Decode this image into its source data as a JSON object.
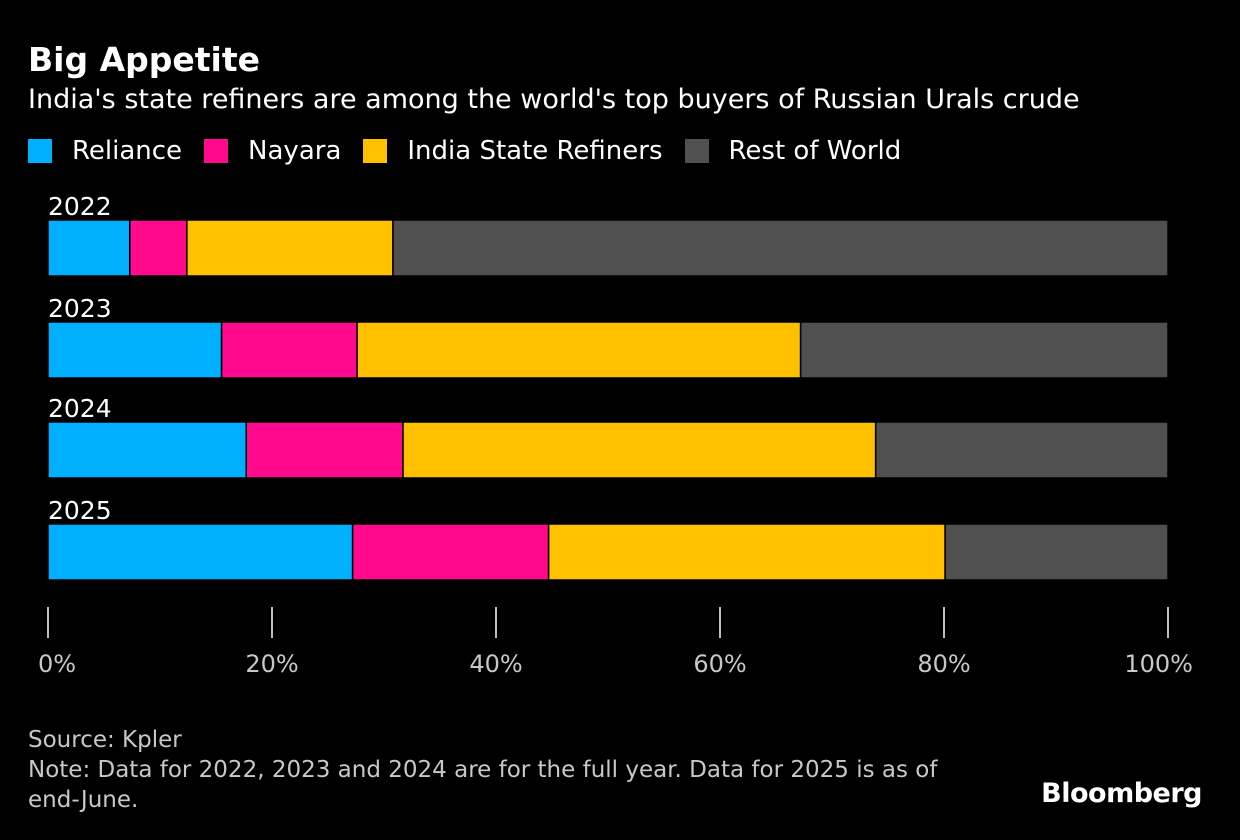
{
  "title": "Big Appetite",
  "subtitle": "India's state refiners are among the world's top buyers of Russian Urals crude",
  "source": "Source: Kpler",
  "note": "Note: Data for 2022, 2023 and 2024 are for the full year. Data for 2025 is as of end-June.",
  "logo": "Bloomberg",
  "chart_data": {
    "type": "bar",
    "orientation": "horizontal",
    "stacked": true,
    "title": "Big Appetite",
    "subtitle": "India's state refiners are among the world's top buyers of Russian Urals crude",
    "categories": [
      "2022",
      "2023",
      "2024",
      "2025"
    ],
    "series": [
      {
        "name": "Reliance",
        "color": "#00b0ff",
        "values": [
          7.3,
          15.5,
          17.7,
          27.2
        ]
      },
      {
        "name": "Nayara",
        "color": "#ff0a8c",
        "values": [
          5.1,
          12.1,
          14.0,
          17.5
        ]
      },
      {
        "name": "India State Refiners",
        "color": "#ffc000",
        "values": [
          18.4,
          39.6,
          42.2,
          35.4
        ]
      },
      {
        "name": "Rest of World",
        "color": "#505050",
        "values": [
          69.2,
          32.8,
          26.1,
          19.9
        ]
      }
    ],
    "xlim": [
      0,
      100
    ],
    "xticks": [
      "0%",
      "20%",
      "40%",
      "60%",
      "80%",
      "100%"
    ],
    "grid": false,
    "legend_position": "top-left"
  }
}
